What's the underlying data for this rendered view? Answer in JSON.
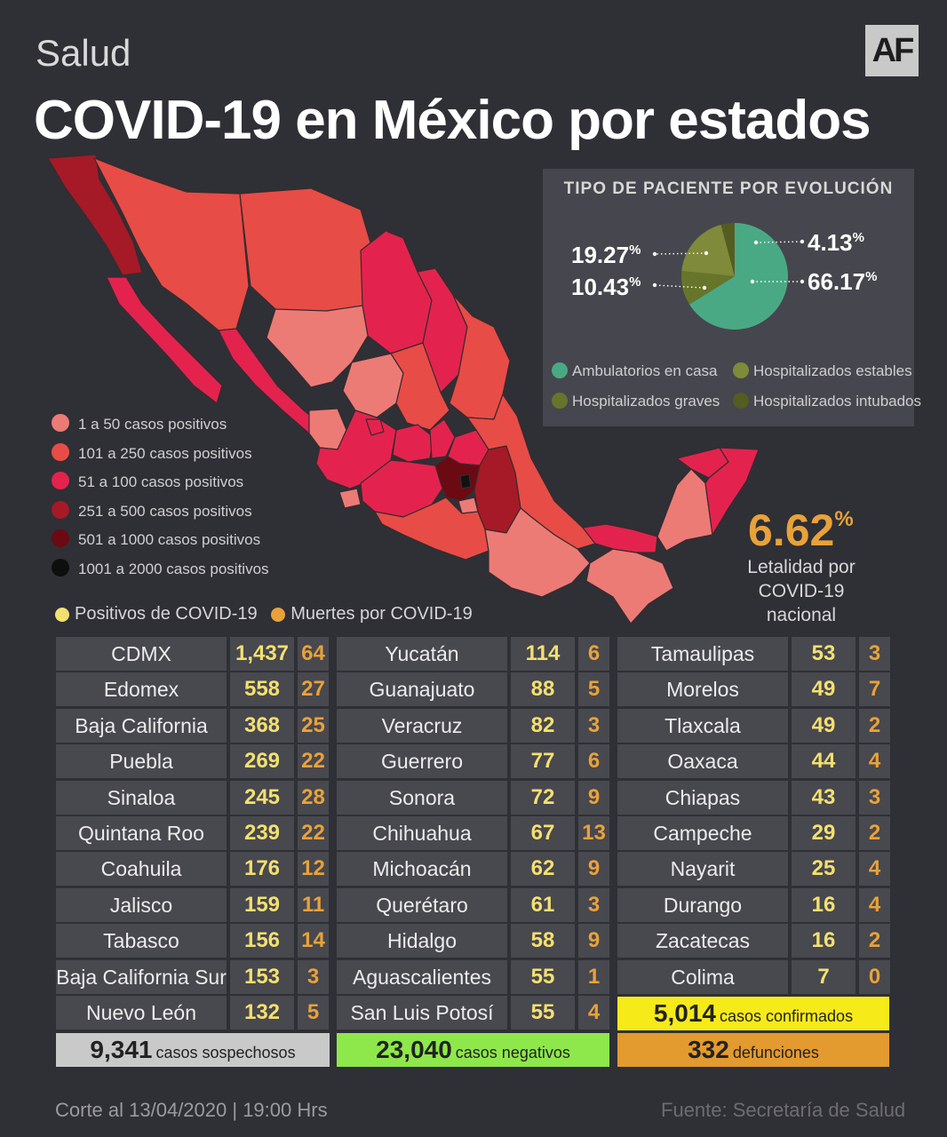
{
  "header": {
    "section": "Salud",
    "logo": "AF",
    "title": "COVID-19 en México por estados"
  },
  "colors": {
    "range_1_50": "#ec7b76",
    "range_101_250": "#e84c46",
    "range_51_100": "#e3234e",
    "range_251_500": "#a51a26",
    "range_501_1000": "#6b0a12",
    "range_1001_2000": "#111111",
    "ambulatorios": "#4aa985",
    "hosp_estables": "#7f8a3a",
    "hosp_graves": "#66752a",
    "hosp_intubados": "#555c21",
    "positivos": "#f3e070",
    "muertes": "#e8a23a",
    "confirmados_box": "#f6ea19",
    "negativos_box": "#8ee84b",
    "sospechosos_box": "#c9c9c9",
    "defunciones_box": "#e39a2e"
  },
  "map": {
    "legend": [
      {
        "label": "1 a 50 casos positivos",
        "color": "#ec7b76"
      },
      {
        "label": "101 a 250 casos positivos",
        "color": "#e84c46"
      },
      {
        "label": "51 a 100 casos positivos",
        "color": "#e3234e"
      },
      {
        "label": "251 a 500 casos positivos",
        "color": "#a51a26"
      },
      {
        "label": "501 a 1000 casos positivos",
        "color": "#6b0a12"
      },
      {
        "label": "1001 a 2000 casos positivos",
        "color": "#111111"
      }
    ]
  },
  "pie": {
    "title": "TIPO DE PACIENTE POR EVOLUCIÓN",
    "labels": {
      "p1": "4.13",
      "p2": "66.17",
      "p3": "19.27",
      "p4": "10.43",
      "sign": "%"
    },
    "legend": [
      "Ambulatorios en casa",
      "Hospitalizados estables",
      "Hospitalizados graves",
      "Hospitalizados intubados"
    ]
  },
  "chart_data": {
    "type": "pie",
    "title": "TIPO DE PACIENTE POR EVOLUCIÓN",
    "slices": [
      {
        "label": "Ambulatorios en casa",
        "value": 66.17
      },
      {
        "label": "Hospitalizados estables",
        "value": 19.27
      },
      {
        "label": "Hospitalizados graves",
        "value": 10.43
      },
      {
        "label": "Hospitalizados intubados",
        "value": 4.13
      }
    ]
  },
  "lethality": {
    "value": "6.62",
    "sign": "%",
    "label_line1": "Letalidad por",
    "label_line2": "COVID-19 nacional"
  },
  "key": {
    "positivos": "Positivos de COVID-19",
    "muertes": "Muertes por COVID-19"
  },
  "table": {
    "columns": [
      [
        {
          "state": "CDMX",
          "pos": "1,437",
          "dth": "64"
        },
        {
          "state": "Edomex",
          "pos": "558",
          "dth": "27"
        },
        {
          "state": "Baja California",
          "pos": "368",
          "dth": "25"
        },
        {
          "state": "Puebla",
          "pos": "269",
          "dth": "22"
        },
        {
          "state": "Sinaloa",
          "pos": "245",
          "dth": "28"
        },
        {
          "state": "Quintana Roo",
          "pos": "239",
          "dth": "22"
        },
        {
          "state": "Coahuila",
          "pos": "176",
          "dth": "12"
        },
        {
          "state": "Jalisco",
          "pos": "159",
          "dth": "11"
        },
        {
          "state": "Tabasco",
          "pos": "156",
          "dth": "14"
        },
        {
          "state": "Baja California Sur",
          "pos": "153",
          "dth": "3"
        },
        {
          "state": "Nuevo León",
          "pos": "132",
          "dth": "5"
        }
      ],
      [
        {
          "state": "Yucatán",
          "pos": "114",
          "dth": "6"
        },
        {
          "state": "Guanajuato",
          "pos": "88",
          "dth": "5"
        },
        {
          "state": "Veracruz",
          "pos": "82",
          "dth": "3"
        },
        {
          "state": "Guerrero",
          "pos": "77",
          "dth": "6"
        },
        {
          "state": "Sonora",
          "pos": "72",
          "dth": "9"
        },
        {
          "state": "Chihuahua",
          "pos": "67",
          "dth": "13"
        },
        {
          "state": "Michoacán",
          "pos": "62",
          "dth": "9"
        },
        {
          "state": "Querétaro",
          "pos": "61",
          "dth": "3"
        },
        {
          "state": "Hidalgo",
          "pos": "58",
          "dth": "9"
        },
        {
          "state": "Aguascalientes",
          "pos": "55",
          "dth": "1"
        },
        {
          "state": "San Luis Potosí",
          "pos": "55",
          "dth": "4"
        }
      ],
      [
        {
          "state": "Tamaulipas",
          "pos": "53",
          "dth": "3"
        },
        {
          "state": "Morelos",
          "pos": "49",
          "dth": "7"
        },
        {
          "state": "Tlaxcala",
          "pos": "49",
          "dth": "2"
        },
        {
          "state": "Oaxaca",
          "pos": "44",
          "dth": "4"
        },
        {
          "state": "Chiapas",
          "pos": "43",
          "dth": "3"
        },
        {
          "state": "Campeche",
          "pos": "29",
          "dth": "2"
        },
        {
          "state": "Nayarit",
          "pos": "25",
          "dth": "4"
        },
        {
          "state": "Durango",
          "pos": "16",
          "dth": "4"
        },
        {
          "state": "Zacatecas",
          "pos": "16",
          "dth": "2"
        },
        {
          "state": "Colima",
          "pos": "7",
          "dth": "0"
        }
      ]
    ]
  },
  "totals": {
    "confirmados": {
      "value": "5,014",
      "label": "casos confirmados"
    },
    "sospechosos": {
      "value": "9,341",
      "label": "casos sospechosos"
    },
    "negativos": {
      "value": "23,040",
      "label": "casos negativos"
    },
    "defunciones": {
      "value": "332",
      "label": "defunciones"
    }
  },
  "footer": {
    "corte": "Corte al 13/04/2020 | 19:00 Hrs",
    "fuente": "Fuente: Secretaría de Salud"
  }
}
